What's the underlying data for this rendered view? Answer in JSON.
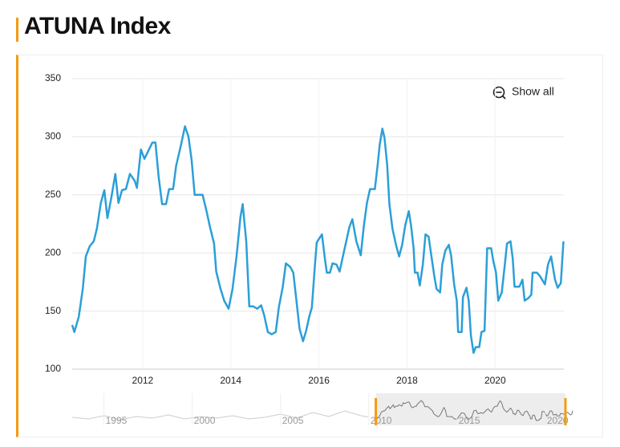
{
  "header": {
    "title": "ATUNA Index"
  },
  "show_all": "Show all",
  "chart_data": {
    "type": "line",
    "x": [
      2010.4,
      2010.45,
      2010.55,
      2010.64,
      2010.71,
      2010.8,
      2010.89,
      2010.96,
      2011.05,
      2011.13,
      2011.2,
      2011.29,
      2011.38,
      2011.45,
      2011.53,
      2011.62,
      2011.71,
      2011.82,
      2011.87,
      2011.96,
      2012.04,
      2012.13,
      2012.22,
      2012.29,
      2012.36,
      2012.44,
      2012.53,
      2012.6,
      2012.69,
      2012.76,
      2012.87,
      2012.96,
      2013.04,
      2013.11,
      2013.18,
      2013.27,
      2013.36,
      2013.45,
      2013.53,
      2013.62,
      2013.67,
      2013.76,
      2013.85,
      2013.95,
      2014.04,
      2014.13,
      2014.22,
      2014.27,
      2014.35,
      2014.42,
      2014.51,
      2014.6,
      2014.69,
      2014.76,
      2014.84,
      2014.93,
      2015.02,
      2015.09,
      2015.18,
      2015.25,
      2015.35,
      2015.42,
      2015.51,
      2015.56,
      2015.64,
      2015.71,
      2015.78,
      2015.84,
      2015.91,
      2015.95,
      2016.0,
      2016.07,
      2016.13,
      2016.18,
      2016.25,
      2016.31,
      2016.4,
      2016.47,
      2016.55,
      2016.62,
      2016.69,
      2016.76,
      2016.85,
      2016.95,
      2017.02,
      2017.09,
      2017.16,
      2017.27,
      2017.33,
      2017.38,
      2017.44,
      2017.49,
      2017.55,
      2017.6,
      2017.67,
      2017.75,
      2017.82,
      2017.89,
      2017.96,
      2018.04,
      2018.09,
      2018.15,
      2018.18,
      2018.24,
      2018.29,
      2018.36,
      2018.42,
      2018.49,
      2018.55,
      2018.62,
      2018.67,
      2018.75,
      2018.8,
      2018.87,
      2018.95,
      2019.0,
      2019.07,
      2019.13,
      2019.16,
      2019.24,
      2019.27,
      2019.35,
      2019.4,
      2019.45,
      2019.51,
      2019.56,
      2019.64,
      2019.69,
      2019.76,
      2019.82,
      2019.91,
      2019.96,
      2020.02,
      2020.07,
      2020.15,
      2020.22,
      2020.27,
      2020.35,
      2020.4,
      2020.44,
      2020.55,
      2020.62,
      2020.67,
      2020.75,
      2020.82,
      2020.85,
      2020.95,
      2021.02,
      2021.13,
      2021.2,
      2021.27,
      2021.36,
      2021.42,
      2021.49,
      2021.55
    ],
    "values": [
      138,
      132,
      145,
      169,
      197,
      206,
      210,
      221,
      243,
      254,
      230,
      248,
      268,
      243,
      254,
      255,
      268,
      262,
      256,
      289,
      281,
      288,
      295,
      295,
      266,
      242,
      242,
      255,
      255,
      275,
      293,
      309,
      300,
      280,
      250,
      250,
      250,
      236,
      222,
      208,
      184,
      170,
      159,
      152,
      169,
      197,
      231,
      242,
      210,
      154,
      154,
      152,
      155,
      146,
      132,
      130,
      132,
      153,
      171,
      191,
      188,
      183,
      152,
      135,
      124,
      133,
      145,
      153,
      190,
      209,
      212,
      216,
      197,
      183,
      183,
      191,
      190,
      184,
      198,
      210,
      222,
      229,
      210,
      198,
      223,
      243,
      255,
      255,
      275,
      293,
      307,
      299,
      276,
      242,
      221,
      207,
      197,
      207,
      224,
      236,
      224,
      204,
      183,
      183,
      172,
      190,
      216,
      214,
      198,
      180,
      169,
      166,
      190,
      202,
      207,
      198,
      173,
      159,
      132,
      132,
      162,
      170,
      159,
      129,
      114,
      119,
      119,
      132,
      133,
      204,
      204,
      193,
      183,
      159,
      166,
      190,
      208,
      210,
      195,
      171,
      171,
      177,
      159,
      161,
      164,
      183,
      183,
      180,
      173,
      190,
      197,
      177,
      170,
      174,
      210
    ],
    "color": "#2b9fd8",
    "xlim": [
      2010.4,
      2021.56
    ],
    "xticks": [
      2012,
      2014,
      2016,
      2018,
      2020
    ],
    "ylim": [
      100,
      350
    ],
    "yticks": [
      100,
      150,
      200,
      250,
      300,
      350
    ],
    "grid": true,
    "navigator": {
      "xlim": [
        1993.2,
        2021.05
      ],
      "xticks": [
        1995,
        2000,
        2005,
        2010,
        2015,
        2020
      ]
    }
  }
}
